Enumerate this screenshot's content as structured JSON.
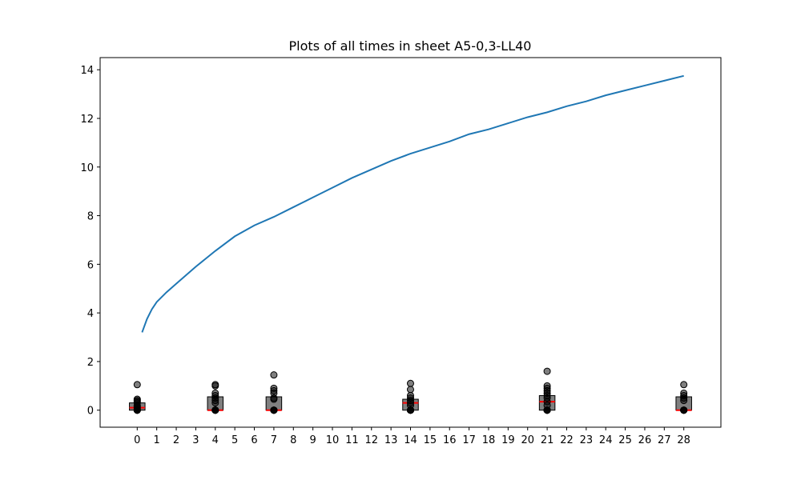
{
  "chart_data": {
    "type": "line",
    "title": "Plots of all times in sheet A5-0,3-LL40",
    "xlabel": "",
    "ylabel": "",
    "xlim": [
      -1.9,
      29.9
    ],
    "ylim": [
      -0.7,
      14.5
    ],
    "xticks": [
      0,
      1,
      2,
      3,
      4,
      5,
      6,
      7,
      8,
      9,
      10,
      11,
      12,
      13,
      14,
      15,
      16,
      17,
      18,
      19,
      20,
      21,
      22,
      23,
      24,
      25,
      26,
      27,
      28
    ],
    "yticks": [
      0,
      2,
      4,
      6,
      8,
      10,
      12,
      14
    ],
    "grid": false,
    "legend": "none",
    "colors": {
      "line": "#1f77b4",
      "box": "#808080",
      "median": "#ff0000",
      "point": "#000000"
    },
    "line_series": {
      "x": [
        0.25,
        0.5,
        0.75,
        1,
        1.5,
        2,
        3,
        4,
        5,
        6,
        7,
        8,
        9,
        10,
        11,
        12,
        13,
        14,
        15,
        16,
        17,
        18,
        19,
        20,
        21,
        22,
        23,
        24,
        25,
        26,
        27,
        28
      ],
      "y": [
        3.2,
        3.75,
        4.15,
        4.45,
        4.85,
        5.2,
        5.9,
        6.55,
        7.15,
        7.6,
        7.95,
        8.35,
        8.75,
        9.15,
        9.55,
        9.9,
        10.25,
        10.55,
        10.8,
        11.05,
        11.35,
        11.55,
        11.8,
        12.05,
        12.25,
        12.5,
        12.7,
        12.95,
        13.15,
        13.35,
        13.55,
        13.75
      ]
    },
    "boxes": [
      {
        "x": 0,
        "q1": 0.0,
        "median": 0.1,
        "q3": 0.3,
        "points": [
          0,
          0,
          0,
          0,
          0,
          0.05,
          0.1,
          0.15,
          0.2,
          0.3,
          0.35,
          0.4,
          0.45,
          1.05
        ]
      },
      {
        "x": 4,
        "q1": 0.0,
        "median": 0.0,
        "q3": 0.55,
        "points": [
          0,
          0,
          0,
          0,
          0,
          0,
          0.3,
          0.4,
          0.5,
          0.6,
          0.7,
          1.0,
          1.05
        ]
      },
      {
        "x": 7,
        "q1": 0.0,
        "median": 0.0,
        "q3": 0.55,
        "points": [
          0,
          0,
          0,
          0,
          0,
          0.45,
          0.5,
          0.7,
          0.8,
          0.9,
          1.45
        ]
      },
      {
        "x": 14,
        "q1": 0.0,
        "median": 0.3,
        "q3": 0.45,
        "points": [
          0,
          0,
          0,
          0,
          0,
          0.2,
          0.3,
          0.4,
          0.5,
          0.6,
          0.85,
          1.1
        ]
      },
      {
        "x": 21,
        "q1": 0.0,
        "median": 0.35,
        "q3": 0.6,
        "points": [
          0,
          0,
          0,
          0,
          0,
          0.2,
          0.35,
          0.5,
          0.6,
          0.7,
          0.8,
          0.9,
          1.0,
          1.6
        ]
      },
      {
        "x": 28,
        "q1": 0.0,
        "median": 0.0,
        "q3": 0.55,
        "points": [
          0,
          0,
          0,
          0,
          0,
          0.4,
          0.5,
          0.6,
          0.7,
          1.05
        ]
      }
    ]
  }
}
